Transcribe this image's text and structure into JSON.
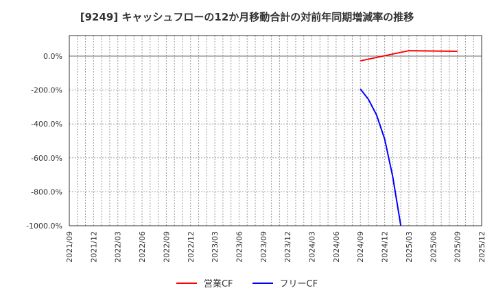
{
  "title": "[9249]  キャッシュフローの12か月移動合計の対前年同期増減率の推移",
  "legend": [
    {
      "label": "営業CF",
      "color": "#ff0000"
    },
    {
      "label": "フリーCF",
      "color": "#0000ff"
    }
  ],
  "chart_data": {
    "type": "line",
    "title": "[9249]  キャッシュフローの12か月移動合計の対前年同期増減率の推移",
    "xlabel": "",
    "ylabel": "",
    "ylim": [
      -1000,
      120
    ],
    "yticks": [
      "0.0%",
      "-200.0%",
      "-400.0%",
      "-600.0%",
      "-800.0%",
      "-1000.0%"
    ],
    "ytick_values": [
      0,
      -200,
      -400,
      -600,
      -800,
      -1000
    ],
    "xticks": [
      "2021/09",
      "2021/12",
      "2022/03",
      "2022/06",
      "2022/09",
      "2022/12",
      "2023/03",
      "2023/06",
      "2023/09",
      "2023/12",
      "2024/03",
      "2024/06",
      "2024/09",
      "2024/12",
      "2025/03",
      "2025/06",
      "2025/09",
      "2025/12"
    ],
    "grid": true,
    "legend_position": "bottom",
    "series": [
      {
        "name": "営業CF",
        "color": "#ff0000",
        "points": [
          {
            "x": "2024/09",
            "y": -28
          },
          {
            "x": "2025/03",
            "y": 32
          },
          {
            "x": "2025/09",
            "y": 28
          }
        ]
      },
      {
        "name": "フリーCF",
        "color": "#0000ff",
        "points": [
          {
            "x": "2024/09",
            "y": -194
          },
          {
            "x": "2024/10",
            "y": -255
          },
          {
            "x": "2024/11",
            "y": -347
          },
          {
            "x": "2024/12",
            "y": -488
          },
          {
            "x": "2025/01",
            "y": -710
          },
          {
            "x": "2025/02",
            "y": -1000
          }
        ],
        "note": "line continues below -1000% (clipped)"
      }
    ]
  }
}
